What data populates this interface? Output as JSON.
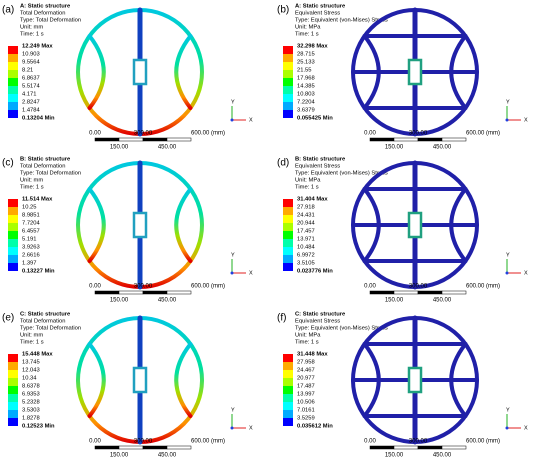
{
  "panels": [
    {
      "label": "(a)",
      "header": [
        "A: Static structure",
        "Total Deformation",
        "Type: Total Deformation",
        "Unit: mm",
        "Time: 1 s"
      ],
      "legend": [
        "12.249 Max",
        "10.903",
        "9.5564",
        "8.21",
        "6.8637",
        "5.5174",
        "4.171",
        "2.8247",
        "1.4784",
        "0.13204 Min"
      ],
      "scale": [
        "0.00",
        "300.00",
        "600.00 (mm)",
        "150.00",
        "450.00"
      ],
      "axes": [
        "Y",
        "X"
      ]
    },
    {
      "label": "(b)",
      "header": [
        "A: Static structure",
        "Equivalent Stress",
        "Type: Equivalent (von-Mises) Stress",
        "Unit: MPa",
        "Time: 1 s"
      ],
      "legend": [
        "32.298 Max",
        "28.715",
        "25.133",
        "21.55",
        "17.968",
        "14.385",
        "10.803",
        "7.2204",
        "3.6379",
        "0.055425 Min"
      ],
      "scale": [
        "0.00",
        "300.00",
        "600.00 (mm)",
        "150.00",
        "450.00"
      ],
      "axes": [
        "Y",
        "X"
      ]
    },
    {
      "label": "(c)",
      "header": [
        "B: Static structure",
        "Total Deformation",
        "Type: Total Deformation",
        "Unit: mm",
        "Time: 1 s"
      ],
      "legend": [
        "11.514 Max",
        "10.25",
        "8.9851",
        "7.7204",
        "6.4557",
        "5.191",
        "3.9263",
        "2.6616",
        "1.397",
        "0.13227 Min"
      ],
      "scale": [
        "0.00",
        "300.00",
        "600.00 (mm)",
        "150.00",
        "450.00"
      ],
      "axes": [
        "Y",
        "X"
      ]
    },
    {
      "label": "(d)",
      "header": [
        "B: Static structure",
        "Equivalent Stress",
        "Type: Equivalent (von-Mises) Stress",
        "Unit: MPa",
        "Time: 1 s"
      ],
      "legend": [
        "31.404 Max",
        "27.918",
        "24.431",
        "20.944",
        "17.457",
        "13.971",
        "10.484",
        "6.9972",
        "3.5105",
        "0.023776 Min"
      ],
      "scale": [
        "0.00",
        "300.00",
        "600.00 (mm)",
        "150.00",
        "450.00"
      ],
      "axes": [
        "Y",
        "X"
      ]
    },
    {
      "label": "(e)",
      "header": [
        "C: Static structure",
        "Total Deformation",
        "Type: Total Deformation",
        "Unit: mm",
        "Time: 1 s"
      ],
      "legend": [
        "15.448 Max",
        "13.745",
        "12.043",
        "10.34",
        "8.6378",
        "6.9353",
        "5.2328",
        "3.5303",
        "1.8278",
        "0.12523 Min"
      ],
      "scale": [
        "0.00",
        "300.00",
        "600.00 (mm)",
        "150.00",
        "450.00"
      ],
      "axes": [
        "Y",
        "X"
      ]
    },
    {
      "label": "(f)",
      "header": [
        "C: Static structure",
        "Equivalent Stress",
        "Type: Equivalent (von-Mises) Stress",
        "Unit: MPa",
        "Time: 1 s"
      ],
      "legend": [
        "31.448 Max",
        "27.958",
        "24.467",
        "20.977",
        "17.487",
        "13.997",
        "10.506",
        "7.0161",
        "3.5259",
        "0.035612 Min"
      ],
      "scale": [
        "0.00",
        "300.00",
        "600.00 (mm)",
        "150.00",
        "450.00"
      ],
      "axes": [
        "Y",
        "X"
      ]
    }
  ]
}
